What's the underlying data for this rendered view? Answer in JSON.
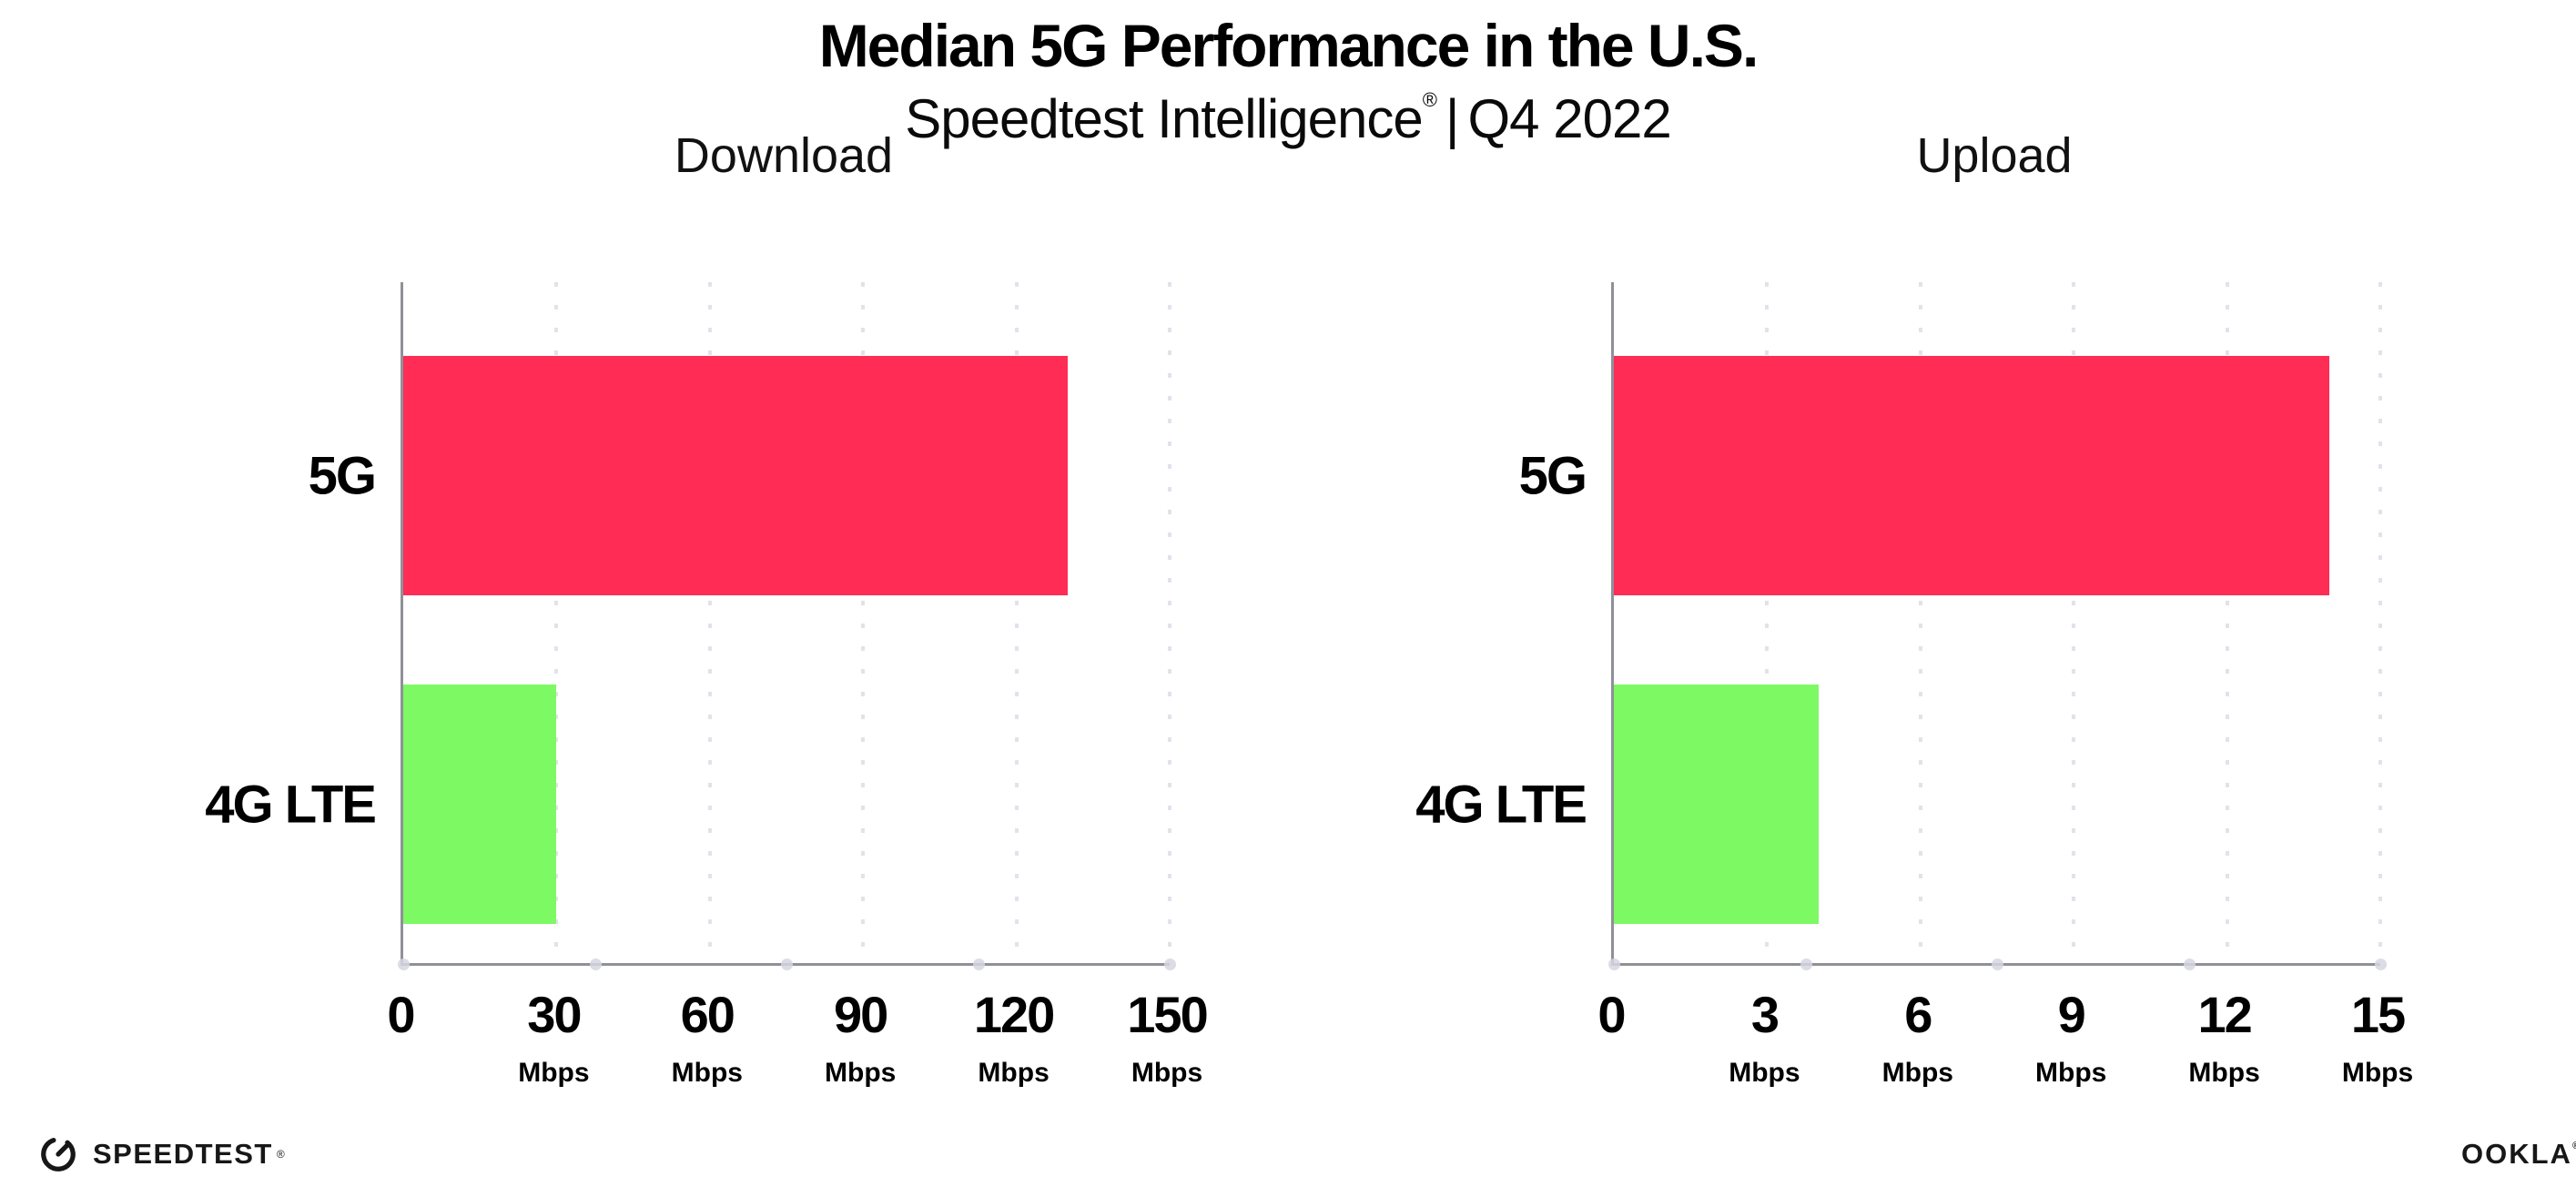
{
  "page": {
    "background": "#ffffff"
  },
  "header": {
    "title": "Median 5G Performance in the U.S.",
    "subtitle_brand": "Speedtest Intelligence",
    "subtitle_reg": "®",
    "subtitle_sep": "|",
    "subtitle_period": "Q4 2022"
  },
  "colors": {
    "bar_5g": "#ff2d55",
    "bar_4g_lte": "#7df963",
    "axis": "#90909a",
    "gridline": "#e2e2ec",
    "axis_dot": "#d6d6e2",
    "text": "#000000"
  },
  "chart_data": [
    {
      "type": "bar",
      "orientation": "horizontal",
      "title": "Download",
      "categories": [
        "5G",
        "4G LTE"
      ],
      "values": [
        130,
        30
      ],
      "bar_colors": [
        "#ff2d55",
        "#7df963"
      ],
      "xlim": [
        0,
        150
      ],
      "xticks": [
        0,
        30,
        60,
        90,
        120,
        150
      ],
      "tick_unit": "Mbps",
      "xlabel": "Mbps",
      "ylabel": "",
      "grid": true,
      "legend": false
    },
    {
      "type": "bar",
      "orientation": "horizontal",
      "title": "Upload",
      "categories": [
        "5G",
        "4G LTE"
      ],
      "values": [
        14,
        4
      ],
      "bar_colors": [
        "#ff2d55",
        "#7df963"
      ],
      "xlim": [
        0,
        15
      ],
      "xticks": [
        0,
        3,
        6,
        9,
        12,
        15
      ],
      "tick_unit": "Mbps",
      "xlabel": "Mbps",
      "ylabel": "",
      "grid": true,
      "legend": false
    }
  ],
  "footer": {
    "speedtest_label": "SPEEDTEST",
    "speedtest_mark": "®",
    "ookla_label": "OOKLA",
    "ookla_mark": "®"
  }
}
